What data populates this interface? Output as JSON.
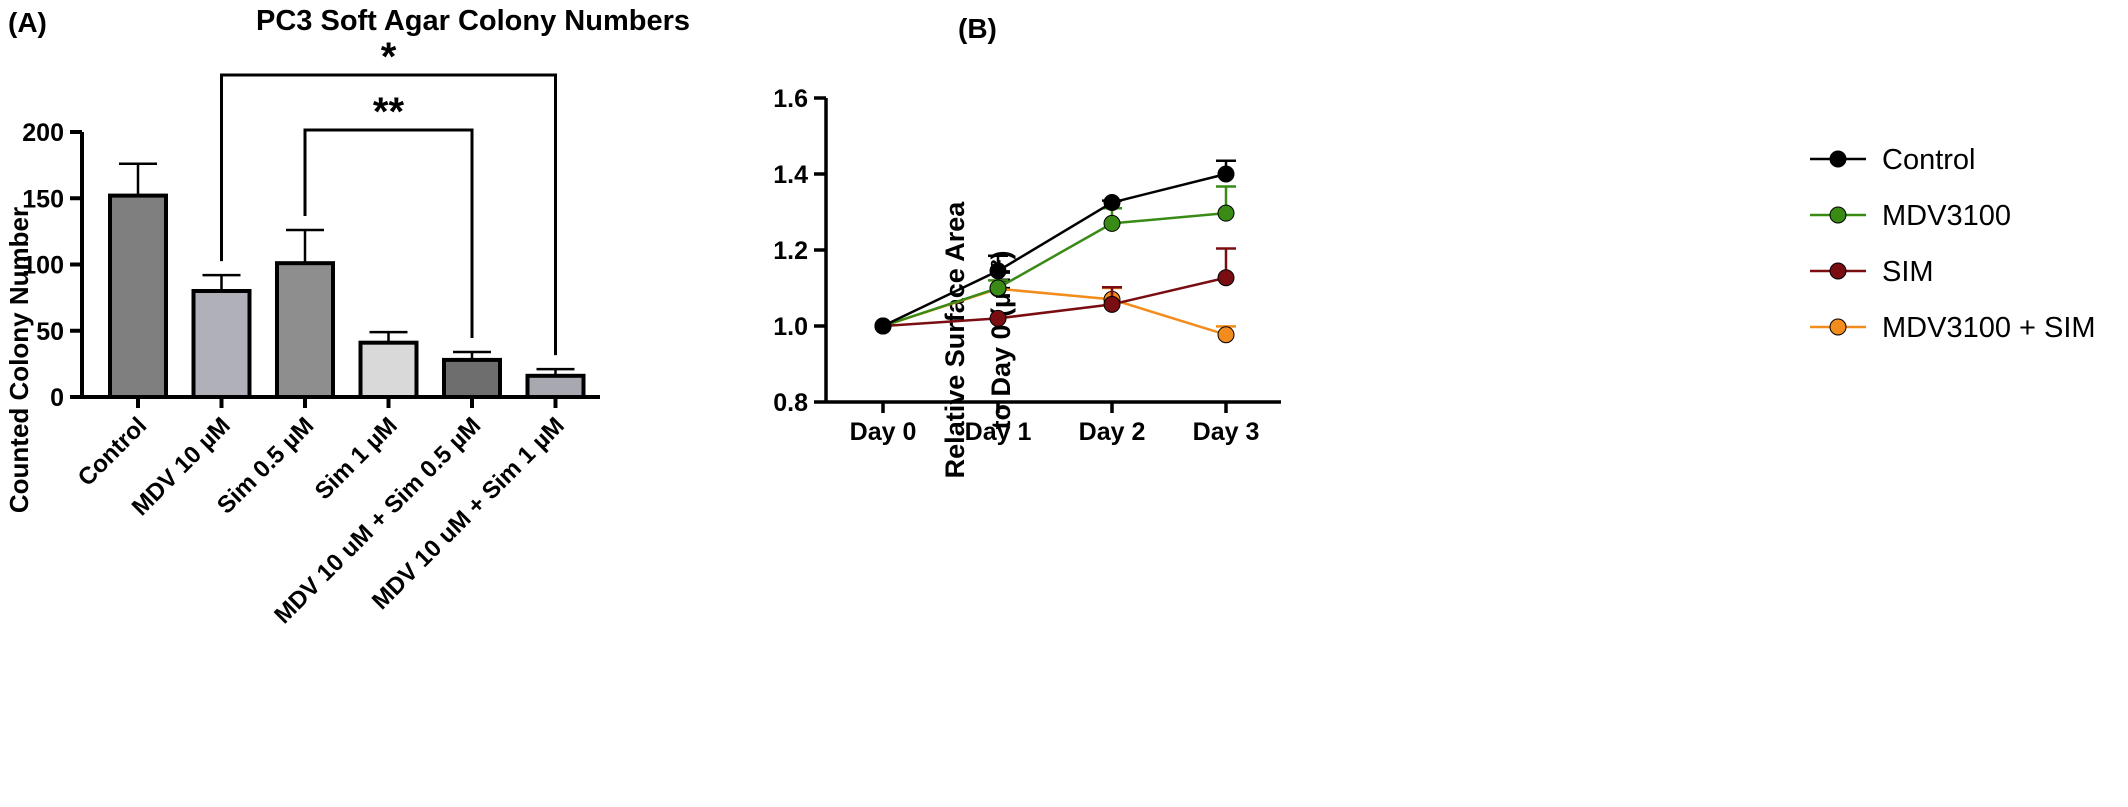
{
  "chart_data": [
    {
      "panel_label": "(A)",
      "type": "bar",
      "title": "PC3 Soft Agar Colony Numbers",
      "ylabel": "Counted Colony Number",
      "xlabel": "",
      "ylim": [
        0,
        200
      ],
      "yticks": [
        "0",
        "50",
        "100",
        "150",
        "200"
      ],
      "categories": [
        "Control",
        "MDV 10 µM",
        "Sim 0.5 µM",
        "Sim 1 µM",
        "MDV 10 uM + Sim 0.5 µM",
        "MDV 10 uM + Sim 1 µM"
      ],
      "values": [
        152,
        80,
        101,
        41,
        28,
        16
      ],
      "errors": [
        24,
        12,
        25,
        8,
        6,
        5
      ],
      "bar_colors": [
        "#7f7f7f",
        "#b0b0b8",
        "#8e8e8e",
        "#d9d9d9",
        "#6e6e6e",
        "#a8a8b0"
      ],
      "significance": [
        {
          "from": 1,
          "to": 5,
          "label": "*"
        },
        {
          "from": 2,
          "to": 4,
          "label": "**"
        }
      ]
    },
    {
      "panel_label": "(B)",
      "type": "line",
      "title": "",
      "ylabel_line1": "Relative Surface Area",
      "ylabel_line2": "to Day 0 (µm²)",
      "xlabel": "",
      "ylim": [
        0.8,
        1.6
      ],
      "yticks": [
        "0.8",
        "1.0",
        "1.2",
        "1.4",
        "1.6"
      ],
      "categories": [
        "Day 0",
        "Day 1",
        "Day 2",
        "Day 3"
      ],
      "legend_position": "right",
      "series": [
        {
          "name": "Control",
          "color": "#000000",
          "values": [
            1.0,
            1.145,
            1.325,
            1.4
          ],
          "errors": [
            0,
            0.04,
            0.005,
            0.035
          ]
        },
        {
          "name": "MDV3100",
          "color": "#3a8a16",
          "values": [
            1.0,
            1.1,
            1.27,
            1.297
          ],
          "errors": [
            0,
            0.02,
            0.04,
            0.07
          ]
        },
        {
          "name": "SIM",
          "color": "#7a0d12",
          "values": [
            1.0,
            1.02,
            1.057,
            1.127
          ],
          "errors": [
            0,
            0,
            0.045,
            0.077
          ]
        },
        {
          "name": "MDV3100 + SIM",
          "color": "#f28c1c",
          "values": [
            1.0,
            1.098,
            1.07,
            0.977
          ],
          "errors": [
            0,
            0,
            0.03,
            0.022
          ]
        }
      ]
    }
  ]
}
